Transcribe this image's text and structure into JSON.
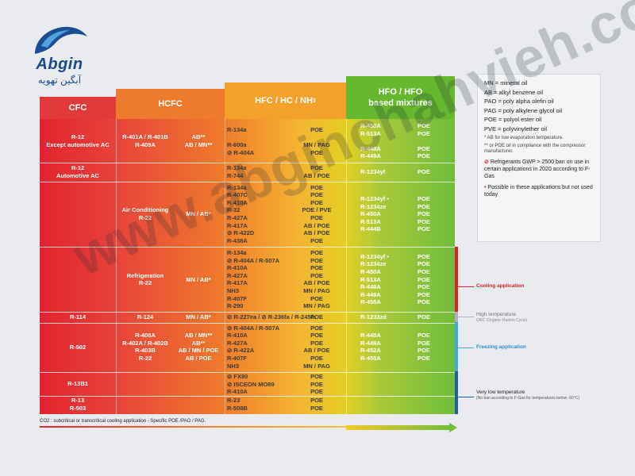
{
  "logo": {
    "latin": "Abgin",
    "farsi": "آبگین تهویه"
  },
  "headers": {
    "cfc": "CFC",
    "hcfc": "HCFC",
    "hfc": "HFC / HC / NH",
    "hfc_sub": "3",
    "hfo_line1": "HFO / HFO",
    "hfo_line2": "based mixtures"
  },
  "rows": [
    {
      "cfc": [
        "R-12",
        "Except automotive AC"
      ],
      "hcfc": [
        "R-401A / R-401B",
        "R-409A"
      ],
      "hcfc_oil": [
        "AB**",
        "AB / MN**"
      ],
      "hfc": [
        "R-134a",
        "",
        "R-600a",
        "⊘ R-404A"
      ],
      "hfc_oil": [
        "POE",
        "",
        "MN / PAG",
        "POE"
      ],
      "hfo": [
        "R-450A",
        "R-513A",
        "",
        "R-448A",
        "R-449A"
      ],
      "hfo_oil": [
        "POE",
        "POE",
        "",
        "POE",
        "POE"
      ]
    },
    {
      "cfc": [
        "R-12",
        "Automotive AC"
      ],
      "hfc": [
        "R-134a",
        "R-744"
      ],
      "hfc_oil": [
        "POE",
        "AB / POE"
      ],
      "hfo": [
        "R-1234yf"
      ],
      "hfo_oil": [
        "POE"
      ]
    },
    {
      "hcfc": [
        "Air Conditioning",
        "R-22"
      ],
      "hcfc_oil": [
        "MN / AB*"
      ],
      "hfc": [
        "R-134a",
        "R-407C",
        "R-410A",
        "R-32",
        "R-427A",
        "R-417A",
        "⊘ R-422D",
        "R-438A"
      ],
      "hfc_oil": [
        "POE",
        "POE",
        "POE",
        "POE / PVE",
        "POE",
        "AB / POE",
        "AB / POE",
        "POE"
      ],
      "hfo": [
        "R-1234yf •",
        "R-1234ze",
        "R-450A",
        "R-513A",
        "R-444B"
      ],
      "hfo_oil": [
        "POE",
        "POE",
        "POE",
        "POE",
        "POE"
      ]
    },
    {
      "hcfc": [
        "Refrigeration",
        "R-22"
      ],
      "hcfc_oil": [
        "MN / AB*"
      ],
      "hfc": [
        "R-134a",
        "⊘ R-404A / R-507A",
        "R-410A",
        "R-427A",
        "R-417A",
        "NH3",
        "R-407F",
        "R-290"
      ],
      "hfc_oil": [
        "POE",
        "POE",
        "POE",
        "POE",
        "AB / POE",
        "MN / PAG",
        "POE",
        "MN / PAG"
      ],
      "hfo": [
        "R-1234yf •",
        "R-1234ze",
        "R-450A",
        "R-513A",
        "R-448A",
        "R-449A",
        "R-455A"
      ],
      "hfo_oil": [
        "POE",
        "POE",
        "POE",
        "POE",
        "POE",
        "POE",
        "POE"
      ]
    },
    {
      "cfc": [
        "R-114"
      ],
      "hcfc": [
        "R-124"
      ],
      "hcfc_oil": [
        "MN / AB*"
      ],
      "hfc": [
        "⊘ R-227ea / ⊘ R-236fa / R-245fa"
      ],
      "hfc_oil": [
        "POE"
      ],
      "hfo": [
        "R-1233zd"
      ],
      "hfo_oil": [
        "POE"
      ]
    },
    {
      "cfc": [
        "R-502"
      ],
      "hcfc": [
        "R-408A",
        "R-402A / R-402B",
        "R-403B",
        "R-22"
      ],
      "hcfc_oil": [
        "AB / MN**",
        "AB**",
        "AB / MN / POE",
        "AB / POE"
      ],
      "hfc": [
        "⊘ R-404A / R-507A",
        "R-410A",
        "R-427A",
        "⊘ R-422A",
        "R-407F",
        "NH3"
      ],
      "hfc_oil": [
        "POE",
        "POE",
        "POE",
        "AB / POE",
        "POE",
        "MN / PAG"
      ],
      "hfo": [
        "R-448A",
        "R-449A",
        "R-452A",
        "R-455A"
      ],
      "hfo_oil": [
        "POE",
        "POE",
        "POE",
        "POE"
      ]
    },
    {
      "cfc": [
        "R-13B1"
      ],
      "hfc": [
        "⊘ FX80",
        "⊘ ISCEON MO89",
        "R-410A"
      ],
      "hfc_oil": [
        "POE",
        "POE",
        "POE"
      ]
    },
    {
      "cfc": [
        "R-13",
        "R-503"
      ],
      "hfc": [
        "R-23",
        "R-508B"
      ],
      "hfc_oil": [
        "POE",
        "POE"
      ]
    }
  ],
  "footnote": "CO2 : subcritical or transcritical cooling application - Specific POE /PAO / PAG.",
  "legend": {
    "lines": [
      "MN = mineral oil",
      "AB = alkyl benzene oil",
      "PAO = poly alpha olefin oil",
      "PAG = poly alkylene glycol oil",
      "POE = polyol ester oil",
      "PVE = polyvinylether oil"
    ],
    "note1": "* AB for low evaporation temperature.",
    "note2": "** or POE oil in compliance with the compressor manufacturer.",
    "ban": "Refrigerants GWP > 2500 ban on use in certain applications in 2020 according to F-Gas",
    "possible": "Possible in these applications but not used today"
  },
  "side": {
    "cooling": "Cooling application",
    "hightemp": "High temperature",
    "hightemp_sub": "ORC (Organic Rankin Cycle)",
    "freezing": "Freezing application",
    "verylow": "Very low temperature",
    "verylow_sub": "(No ban according to F-Gas for temperatures below -50°C)"
  },
  "colors": {
    "cooling": "#e0202a",
    "hightemp": "#b9a9c8",
    "freezing": "#46a6e0",
    "verylow": "#1b5fa8"
  },
  "watermark": "www.abginchahvieh.com"
}
